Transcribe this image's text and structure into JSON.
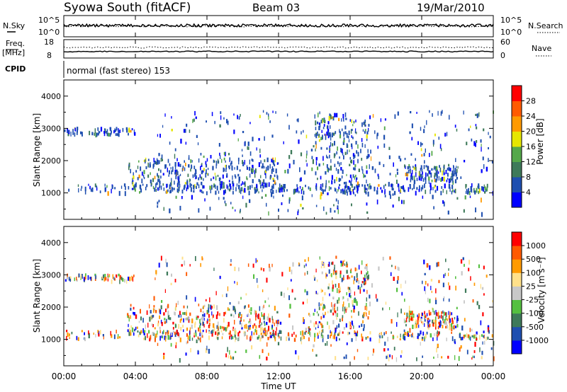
{
  "header": {
    "station": "Syowa South (fitACF)",
    "beam": "Beam 03",
    "date": "19/Mar/2010"
  },
  "top_panel": {
    "nsky_label": "N.Sky",
    "nsky_ticks": [
      "10^5",
      "10^0"
    ],
    "nsearch_label": "N.Search",
    "nsearch_ticks": [
      "10^5",
      "10^0"
    ],
    "freq_label": "Freq.",
    "freq_unit": "[MHz]",
    "freq_ticks": [
      "18",
      "8"
    ],
    "nave_label": "Nave",
    "nave_ticks": [
      "60",
      "0"
    ],
    "cpid_label": "CPID",
    "cpid_text": "normal (fast stereo) 153"
  },
  "chart_data": [
    {
      "type": "heatmap",
      "name": "power",
      "ylabel": "Slant Range [km]",
      "yticks": [
        1000,
        2000,
        3000,
        4000
      ],
      "ylim": [
        180,
        4500
      ],
      "xlim": [
        0,
        24
      ],
      "colorbar_title": "Power [dB]",
      "colorbar_ticks": [
        "28",
        "24",
        "20",
        "16",
        "12",
        "8",
        "4"
      ],
      "colors": [
        "#0000ff",
        "#1f4fb0",
        "#3e7a5a",
        "#55a84a",
        "#e6e600",
        "#ff9a00",
        "#ff5a00",
        "#ff0000"
      ],
      "bands": [
        {
          "x0": 0.1,
          "x1": 24,
          "y0": 1050,
          "y1": 1300,
          "n": 260
        },
        {
          "x0": 3.5,
          "x1": 12,
          "y0": 1200,
          "y1": 2100,
          "n": 260
        },
        {
          "x0": 5,
          "x1": 24,
          "y0": 400,
          "y1": 3600,
          "n": 420
        },
        {
          "x0": 0,
          "x1": 4,
          "y0": 2850,
          "y1": 3050,
          "n": 60
        },
        {
          "x0": 14,
          "x1": 17,
          "y0": 1000,
          "y1": 3500,
          "n": 200
        },
        {
          "x0": 19,
          "x1": 22,
          "y0": 1400,
          "y1": 1900,
          "n": 120
        }
      ]
    },
    {
      "type": "heatmap",
      "name": "velocity",
      "ylabel": "Slant Range [km]",
      "yticks": [
        1000,
        2000,
        3000,
        4000
      ],
      "ylim": [
        180,
        4500
      ],
      "xlim": [
        0,
        24
      ],
      "colorbar_title": "Velocity [m s⁻¹]",
      "colorbar_ticks": [
        "1000",
        "500",
        "100",
        "25",
        "-25",
        "-100",
        "-500",
        "-1000"
      ],
      "colors": [
        "#ff0000",
        "#ff5a00",
        "#ff9a00",
        "#ffe08a",
        "#c8c8c8",
        "#55c040",
        "#3e7a5a",
        "#1f4fb0",
        "#0000ff"
      ],
      "bands": [
        {
          "x0": 0.1,
          "x1": 24,
          "y0": 1050,
          "y1": 1300,
          "n": 260
        },
        {
          "x0": 3.5,
          "x1": 12,
          "y0": 1200,
          "y1": 2100,
          "n": 260
        },
        {
          "x0": 5,
          "x1": 24,
          "y0": 400,
          "y1": 3600,
          "n": 420
        },
        {
          "x0": 0,
          "x1": 4,
          "y0": 2850,
          "y1": 3050,
          "n": 60
        },
        {
          "x0": 14,
          "x1": 17,
          "y0": 1000,
          "y1": 3500,
          "n": 200
        },
        {
          "x0": 19,
          "x1": 22,
          "y0": 1400,
          "y1": 1900,
          "n": 120
        }
      ]
    }
  ],
  "x_axis": {
    "ticks": [
      "00:00",
      "04:00",
      "08:00",
      "12:00",
      "16:00",
      "20:00",
      "00:00"
    ],
    "label": "Time UT"
  }
}
